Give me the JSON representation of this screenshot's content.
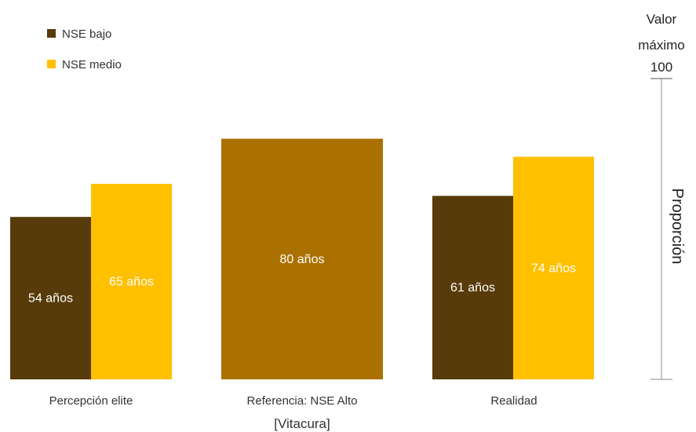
{
  "chart_data": {
    "type": "bar",
    "categories": [
      "Percepción elite",
      "Referencia: NSE Alto",
      "Realidad"
    ],
    "category_sublabels": [
      "",
      "[Vitacura]",
      ""
    ],
    "series": [
      {
        "name": "NSE bajo",
        "color": "#573B0A",
        "values": [
          54,
          null,
          61
        ],
        "labels": [
          "54 años",
          null,
          "61 años"
        ]
      },
      {
        "name": "NSE medio",
        "color": "#FFC000",
        "values": [
          65,
          null,
          74
        ],
        "labels": [
          "65 años",
          null,
          "74 años"
        ]
      },
      {
        "name": "NSE Alto",
        "color": "#AB7100",
        "values": [
          null,
          80,
          null
        ],
        "labels": [
          null,
          "80 años",
          null
        ]
      }
    ],
    "ylim": [
      0,
      100
    ],
    "ylabel": "Proporción",
    "scale_note": [
      "Valor",
      "máximo",
      "100"
    ],
    "legend": {
      "position": "top-left",
      "entries": [
        "NSE bajo",
        "NSE medio"
      ]
    },
    "grid": false
  }
}
